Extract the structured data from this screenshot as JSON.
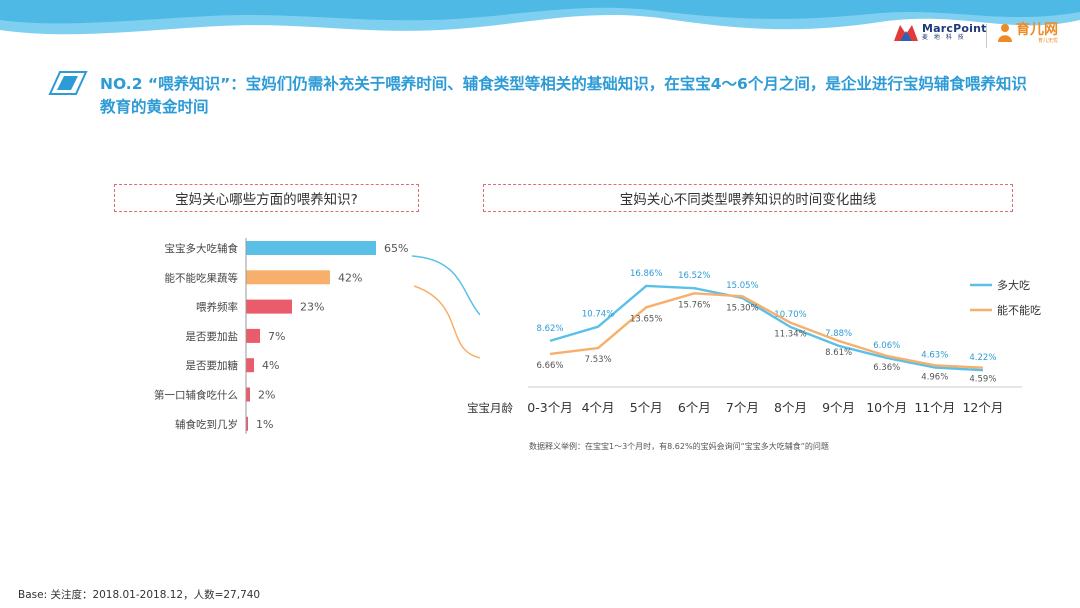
{
  "header": {
    "marcpoint_name": "MarcPoint",
    "marcpoint_sub": "麦 地 科 技",
    "yuer_name": "育儿网",
    "yuer_sub": "育儿无忧"
  },
  "headline": "NO.2 “喂养知识”：宝妈们仍需补充关于喂养时间、辅食类型等相关的基础知识，在宝宝4～6个月之间，是企业进行宝妈辅食喂养知识教育的黄金时间",
  "left_panel_title": "宝妈关心哪些方面的喂养知识?",
  "right_panel_title": "宝妈关心不同类型喂养知识的时间变化曲线",
  "chart_data": [
    {
      "type": "bar",
      "orientation": "horizontal",
      "categories": [
        "宝宝多大吃辅食",
        "能不能吃果蔬等",
        "喂养频率",
        "是否要加盐",
        "是否要加糖",
        "第一口辅食吃什么",
        "辅食吃到几岁"
      ],
      "values": [
        65,
        42,
        23,
        7,
        4,
        2,
        1
      ],
      "value_labels": [
        "65%",
        "42%",
        "23%",
        "7%",
        "4%",
        "2%",
        "1%"
      ],
      "colors": [
        "#5bc0e8",
        "#f7b06b",
        "#ea5b6c",
        "#ea5b6c",
        "#ea5b6c",
        "#ea5b6c",
        "#ea5b6c"
      ],
      "xlim": [
        0,
        65
      ]
    },
    {
      "type": "line",
      "xlabel": "宝宝月龄",
      "categories": [
        "0-3个月",
        "4个月",
        "5个月",
        "6个月",
        "7个月",
        "8个月",
        "9个月",
        "10个月",
        "11个月",
        "12个月"
      ],
      "series": [
        {
          "name": "多大吃",
          "color": "#5bc0e8",
          "values": [
            8.62,
            10.74,
            16.86,
            16.52,
            15.05,
            10.7,
            7.88,
            6.06,
            4.63,
            4.22
          ],
          "labels": [
            "8.62%",
            "10.74%",
            "16.86%",
            "16.52%",
            "15.05%",
            "10.70%",
            "7.88%",
            "6.06%",
            "4.63%",
            "4.22%"
          ]
        },
        {
          "name": "能不能吃",
          "color": "#f7b06b",
          "values": [
            6.66,
            7.53,
            13.65,
            15.76,
            15.3,
            11.34,
            8.61,
            6.36,
            4.96,
            4.59
          ],
          "labels": [
            "6.66%",
            "7.53%",
            "13.65%",
            "15.76%",
            "15.30%",
            "11.34%",
            "8.61%",
            "6.36%",
            "4.96%",
            "4.59%"
          ]
        }
      ],
      "ylim": [
        2,
        20
      ],
      "legend": "right"
    }
  ],
  "note": "数据释义举例：在宝宝1～3个月时，有8.62%的宝妈会询问“宝宝多大吃辅食”的问题",
  "base": "Base: 关注度：2018.01-2018.12，人数=27,740"
}
